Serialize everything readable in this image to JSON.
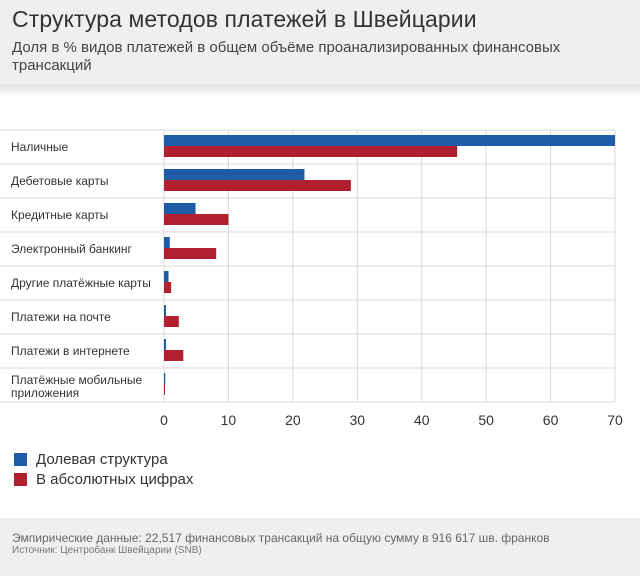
{
  "header": {
    "title": "Структура методов платежей в Швейцарии",
    "subtitle": "Доля в % видов платежей в общем объёме проанализированных финансовых трансакций"
  },
  "chart_data": {
    "type": "bar",
    "orientation": "horizontal",
    "categories": [
      "Наличные",
      "Дебетовые карты",
      "Кредитные карты",
      "Электронный банкинг",
      "Другие платёжные карты",
      "Платежи на почте",
      "Платежи в интернете",
      "Платёжные мобильные приложения"
    ],
    "series": [
      {
        "name": "Долевая структура",
        "color": "#1f5ca8",
        "values": [
          70,
          21.8,
          4.9,
          0.9,
          0.7,
          0.3,
          0.3,
          0.2
        ]
      },
      {
        "name": "В абсолютных цифрах",
        "color": "#b0202e",
        "values": [
          45.5,
          29,
          10,
          8.1,
          1.1,
          2.3,
          3,
          0.1
        ]
      }
    ],
    "xlim": [
      0,
      70
    ],
    "xticks": [
      0,
      10,
      20,
      30,
      40,
      50,
      60,
      70
    ],
    "grid": true,
    "legend": "bottom-left"
  },
  "legend": {
    "items": [
      {
        "label": "Долевая структура",
        "color": "#1f5ca8"
      },
      {
        "label": "В абсолютных цифрах",
        "color": "#b0202e"
      }
    ]
  },
  "footer": {
    "note": "Эмпирические данные: 22,517 финансовых трансакций на общую сумму в 916 617 шв. франков",
    "source": "Источник: Центробанк Швейцарии (SNB)"
  }
}
